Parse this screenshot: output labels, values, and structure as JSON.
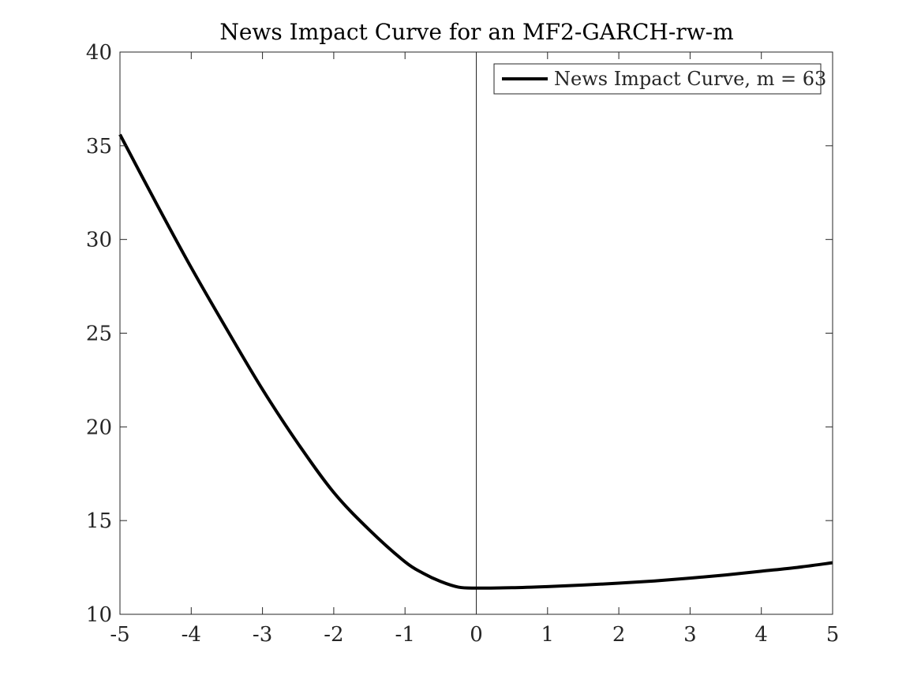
{
  "chart_data": {
    "type": "line",
    "title": "News Impact Curve for an MF2-GARCH-rw-m",
    "xlabel": "",
    "ylabel": "",
    "xlim": [
      -5,
      5
    ],
    "ylim": [
      10,
      40
    ],
    "x_ticks": [
      -5,
      -4,
      -3,
      -2,
      -1,
      0,
      1,
      2,
      3,
      4,
      5
    ],
    "x_tick_labels": [
      "-5",
      "-4",
      "-3",
      "-2",
      "-1",
      "0",
      "1",
      "2",
      "3",
      "4",
      "5"
    ],
    "y_ticks": [
      10,
      15,
      20,
      25,
      30,
      35,
      40
    ],
    "y_tick_labels": [
      "10",
      "15",
      "20",
      "25",
      "30",
      "35",
      "40"
    ],
    "grid": false,
    "legend_position": "top-right",
    "vertical_reference_line_x": 0,
    "series": [
      {
        "name": "News Impact Curve, m = 63",
        "color": "#000000",
        "x": [
          -5,
          -4.5,
          -4,
          -3.5,
          -3,
          -2.5,
          -2,
          -1.5,
          -1,
          -0.75,
          -0.5,
          -0.25,
          0,
          0.5,
          1,
          1.5,
          2,
          2.5,
          3,
          3.5,
          4,
          4.5,
          5
        ],
        "y": [
          35.6,
          32.0,
          28.5,
          25.2,
          22.0,
          19.1,
          16.5,
          14.5,
          12.8,
          12.2,
          11.75,
          11.45,
          11.4,
          11.42,
          11.48,
          11.56,
          11.66,
          11.78,
          11.93,
          12.1,
          12.3,
          12.5,
          12.75
        ]
      }
    ]
  }
}
